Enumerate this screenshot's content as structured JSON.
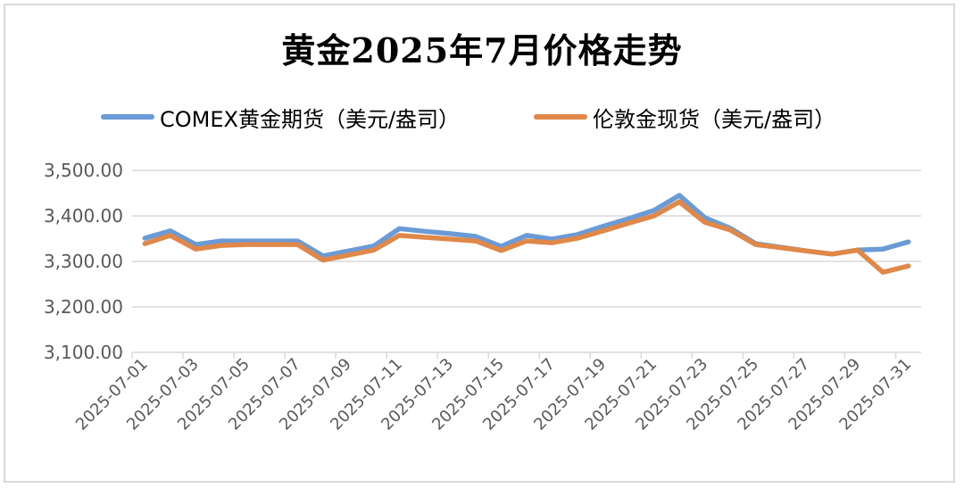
{
  "chart_data": {
    "type": "line",
    "title": "黄金2025年7月价格走势",
    "xlabel": "",
    "ylabel": "",
    "ylim": [
      3100,
      3500
    ],
    "yticks": [
      "3,100.00",
      "3,200.00",
      "3,300.00",
      "3,400.00",
      "3,500.00"
    ],
    "ytick_values": [
      3100,
      3200,
      3300,
      3400,
      3500
    ],
    "grid": true,
    "legend_position": "top",
    "x_tick_labels": [
      "2025-07-01",
      "2025-07-03",
      "2025-07-05",
      "2025-07-07",
      "2025-07-09",
      "2025-07-11",
      "2025-07-13",
      "2025-07-15",
      "2025-07-17",
      "2025-07-19",
      "2025-07-21",
      "2025-07-23",
      "2025-07-25",
      "2025-07-27",
      "2025-07-29",
      "2025-07-31"
    ],
    "categories": [
      "2025-07-01",
      "2025-07-02",
      "2025-07-03",
      "2025-07-04",
      "2025-07-05",
      "2025-07-06",
      "2025-07-07",
      "2025-07-08",
      "2025-07-09",
      "2025-07-10",
      "2025-07-11",
      "2025-07-12",
      "2025-07-13",
      "2025-07-14",
      "2025-07-15",
      "2025-07-16",
      "2025-07-17",
      "2025-07-18",
      "2025-07-19",
      "2025-07-20",
      "2025-07-21",
      "2025-07-22",
      "2025-07-23",
      "2025-07-24",
      "2025-07-25",
      "2025-07-26",
      "2025-07-27",
      "2025-07-28",
      "2025-07-29",
      "2025-07-30",
      "2025-07-31"
    ],
    "series": [
      {
        "name": "COMEX黄金期货（美元/盎司）",
        "color": "#6a9bd6",
        "values": [
          3351,
          3367,
          3337,
          3345,
          3345,
          3345,
          3345,
          3312,
          3323,
          3334,
          3372,
          3366,
          3361,
          3355,
          3333,
          3357,
          3349,
          3359,
          3377,
          3394,
          3412,
          3445,
          3396,
          3373,
          3339,
          3331,
          3323,
          3316,
          3325,
          3327,
          3343
        ]
      },
      {
        "name": "伦敦金现货（美元/盎司）",
        "color": "#e0874a",
        "values": [
          3339,
          3357,
          3327,
          3335,
          3337,
          3337,
          3337,
          3303,
          3314,
          3325,
          3357,
          3353,
          3349,
          3345,
          3324,
          3345,
          3341,
          3351,
          3367,
          3384,
          3400,
          3431,
          3386,
          3369,
          3337,
          3330,
          3323,
          3316,
          3325,
          3276,
          3290
        ]
      }
    ]
  },
  "title": "黄金2025年7月价格走势",
  "legend": [
    {
      "label": "COMEX黄金期货（美元/盎司）",
      "color": "#6a9bd6"
    },
    {
      "label": "伦敦金现货（美元/盎司）",
      "color": "#e0874a"
    }
  ]
}
